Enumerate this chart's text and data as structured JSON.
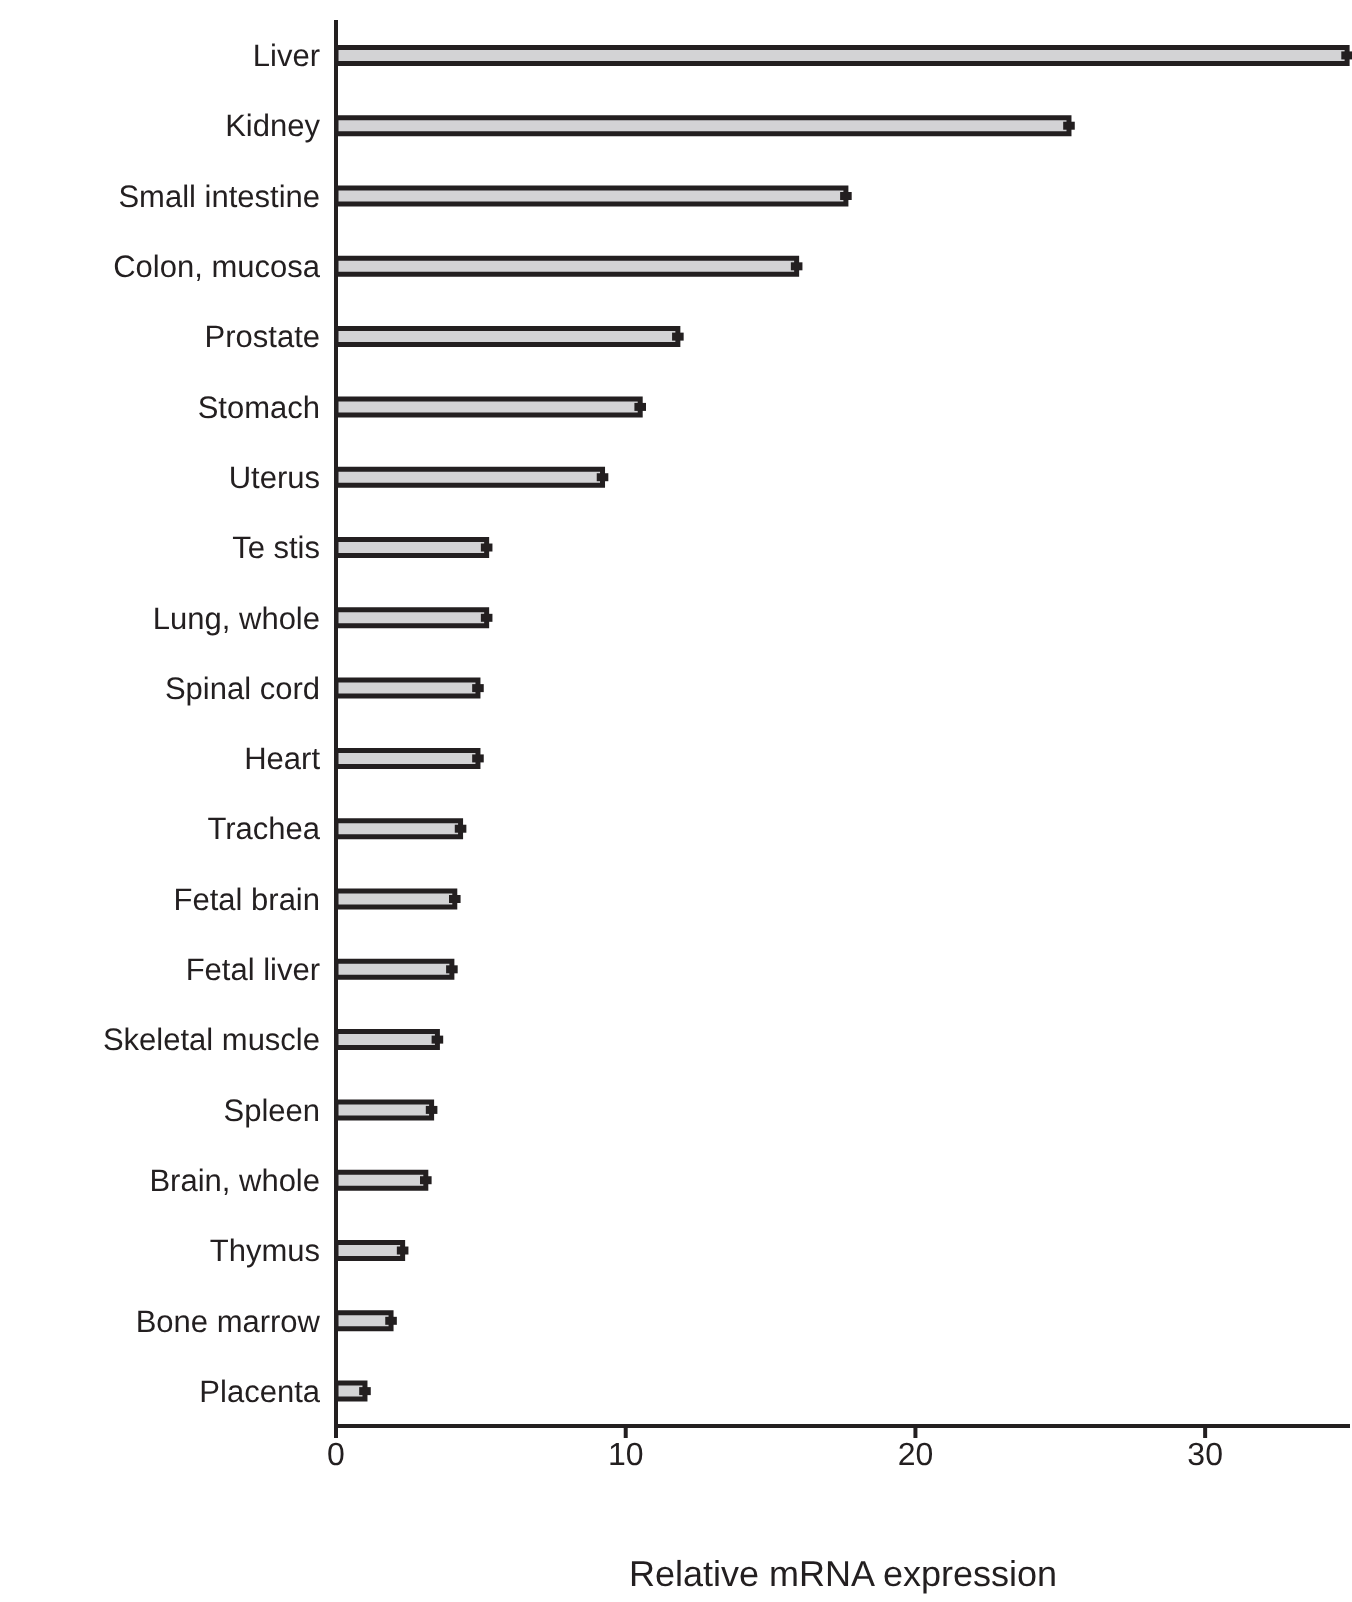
{
  "chart_data": {
    "type": "bar",
    "orientation": "horizontal",
    "xlabel": "Relative mRNA expression",
    "categories": [
      "Liver",
      "Kidney",
      "Small intestine",
      "Colon, mucosa",
      "Prostate",
      "Stomach",
      "Uterus",
      "Te stis",
      "Lung, whole",
      "Spinal cord",
      "Heart",
      "Trachea",
      "Fetal brain",
      "Fetal liver",
      "Skeletal muscle",
      "Spleen",
      "Brain, whole",
      "Thymus",
      "Bone marrow",
      "Placenta"
    ],
    "values": [
      34.9,
      25.3,
      17.6,
      15.9,
      11.8,
      10.5,
      9.2,
      5.2,
      5.2,
      4.9,
      4.9,
      4.3,
      4.1,
      4.0,
      3.5,
      3.3,
      3.1,
      2.3,
      1.9,
      1.0
    ],
    "errors": [
      0.2,
      0.2,
      0.2,
      0.2,
      0.2,
      0.2,
      0.2,
      0.2,
      0.2,
      0.2,
      0.2,
      0.2,
      0.2,
      0.2,
      0.2,
      0.2,
      0.2,
      0.2,
      0.2,
      0.2
    ],
    "color": "#d3d3d5",
    "xlim": [
      0,
      35
    ],
    "xticks": [
      0,
      10,
      20,
      30
    ]
  }
}
